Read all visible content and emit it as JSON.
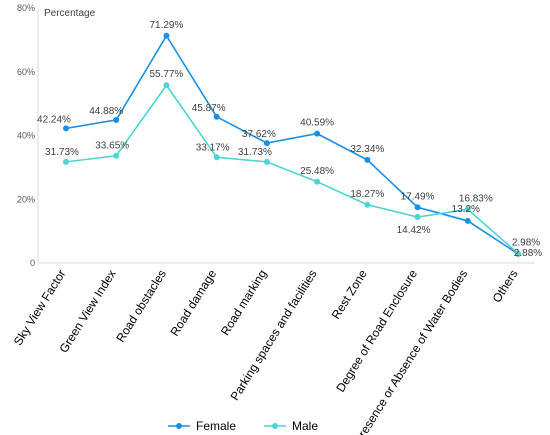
{
  "chart_data": {
    "type": "line",
    "unit_label": "Percentage",
    "categories": [
      "Sky View Factor",
      "Green View Index",
      "Road obstacles",
      "Road damage",
      "Road marking",
      "Parking spaces and facilities",
      "Rest Zone",
      "Degree of Road Enclosure",
      "Presence or Absence of Water Bodies",
      "Others"
    ],
    "ylim": [
      0,
      80
    ],
    "yticks": [
      0,
      20,
      40,
      60,
      80
    ],
    "ytick_labels": [
      "0",
      "20%",
      "40%",
      "60%",
      "80%"
    ],
    "grid": false,
    "legend_position": "bottom",
    "series": [
      {
        "name": "Female",
        "color": "#1a8fe6",
        "values": [
          42.24,
          44.88,
          71.29,
          45.87,
          37.62,
          40.59,
          32.34,
          17.49,
          13.2,
          2.88
        ],
        "labels": [
          "42.24%",
          "44.88%",
          "71.29%",
          "45.87%",
          "37.62%",
          "40.59%",
          "32.34%",
          "17.49%",
          "13.2%",
          "2.88%"
        ]
      },
      {
        "name": "Male",
        "color": "#4fd3d3",
        "values": [
          31.73,
          33.65,
          55.77,
          33.17,
          31.73,
          25.48,
          18.27,
          14.42,
          16.83,
          2.98
        ],
        "labels": [
          "31.73%",
          "33.65%",
          "55.77%",
          "33.17%",
          "31.73%",
          "25.48%",
          "18.27%",
          "14.42%",
          "16.83%",
          "2.98%"
        ]
      }
    ]
  }
}
